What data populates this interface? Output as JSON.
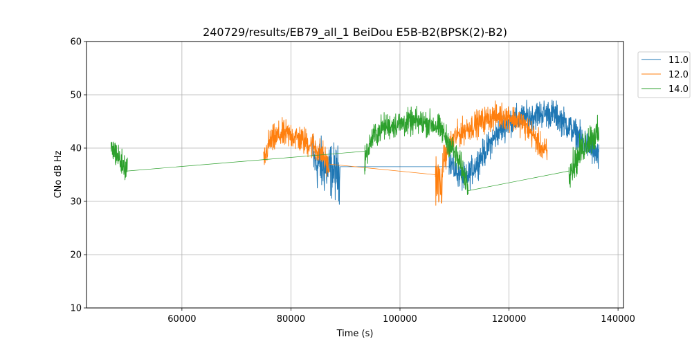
{
  "chart_data": {
    "type": "line",
    "title": "240729/results/EB79_all_1 BeiDou E5B-B2(BPSK(2)-B2)",
    "xlabel": "Time (s)",
    "ylabel": "CNo dB Hz",
    "xlim": [
      42500,
      141000
    ],
    "ylim": [
      10,
      60
    ],
    "xticks": [
      60000,
      80000,
      100000,
      120000,
      140000
    ],
    "yticks": [
      10,
      20,
      30,
      40,
      50,
      60
    ],
    "grid": true,
    "legend_position": "outside-top-right",
    "series": [
      {
        "name": "11.0",
        "color": "#1f77b4",
        "segments": [
          {
            "x": [
              84000,
              85000,
              86000,
              87000,
              88000,
              89000
            ],
            "y": [
              38,
              37,
              36.5,
              36,
              35.5,
              35
            ],
            "noise": 2.5
          },
          {
            "x": [
              89000,
              109000
            ],
            "y": [
              36.5,
              36.5
            ],
            "noise": 0
          },
          {
            "x": [
              109000,
              110000,
              112000,
              114000,
              116000,
              118000,
              120000,
              122000,
              124000,
              126000,
              128000,
              130000,
              132000,
              134000,
              136500
            ],
            "y": [
              38,
              36,
              34,
              37,
              40,
              43,
              45,
              45.5,
              46,
              46.5,
              46.5,
              45,
              43,
              41,
              38
            ],
            "noise": 1.3
          }
        ]
      },
      {
        "name": "12.0",
        "color": "#ff7f0e",
        "segments": [
          {
            "x": [
              75000,
              76000,
              78000,
              80000,
              82000,
              84000,
              86000,
              87000
            ],
            "y": [
              37.5,
              41,
              42.5,
              42.5,
              41.5,
              40.5,
              38.5,
              36
            ],
            "noise": 1.3
          },
          {
            "x": [
              87000,
              106500
            ],
            "y": [
              37,
              35
            ],
            "noise": 0
          },
          {
            "x": [
              106500,
              107500,
              108000
            ],
            "y": [
              35,
              32.5,
              36
            ],
            "noise": 2.2
          },
          {
            "x": [
              108000,
              110000,
              112000,
              114000,
              116000,
              118000,
              120000,
              122000,
              124000,
              126000,
              127000
            ],
            "y": [
              38,
              42,
              43.5,
              44.5,
              45.5,
              46,
              46,
              45,
              43,
              40,
              39
            ],
            "noise": 1.2
          }
        ]
      },
      {
        "name": "14.0",
        "color": "#2ca02c",
        "segments": [
          {
            "x": [
              47000,
              48000,
              49000,
              50000
            ],
            "y": [
              40,
              39,
              37,
              36
            ],
            "noise": 1.3
          },
          {
            "x": [
              50000,
              93500
            ],
            "y": [
              35.7,
              39.4
            ],
            "noise": 0
          },
          {
            "x": [
              93500,
              95000,
              97000,
              100000,
              103000,
              106000,
              107500,
              109000,
              110000,
              111000,
              112500
            ],
            "y": [
              38,
              42,
              44,
              44.5,
              45,
              44.5,
              43.5,
              41,
              39,
              37,
              33
            ],
            "noise": 1.2
          },
          {
            "x": [
              112500,
              131000
            ],
            "y": [
              32,
              35.7
            ],
            "noise": 0
          },
          {
            "x": [
              131000,
              132000,
              133000,
              134000,
              135000,
              136500
            ],
            "y": [
              36,
              37,
              39,
              41,
              42,
              42.5
            ],
            "noise": 1.5
          }
        ]
      }
    ]
  }
}
